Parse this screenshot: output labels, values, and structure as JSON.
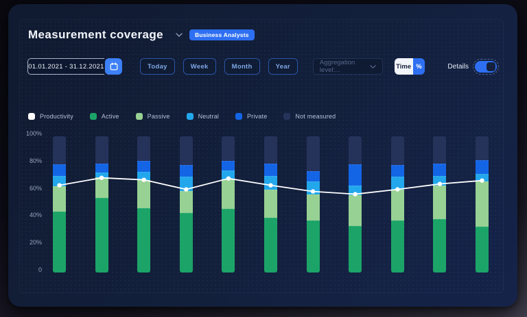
{
  "header": {
    "title": "Measurement coverage",
    "team_badge": "Business Analysts"
  },
  "icons": {
    "title_chevron": "chevron-down",
    "calendar": "calendar",
    "dropdown_chevron": "chevron-down"
  },
  "toolbar": {
    "date_range": "01.01.2021 - 31.12.2021",
    "range_buttons": [
      "Today",
      "Week",
      "Month",
      "Year"
    ],
    "aggregation_placeholder": "Aggregation level:...",
    "unit_toggle": {
      "options": [
        "Time",
        "%"
      ],
      "selected": "%"
    },
    "details_label": "Details",
    "details_on": true
  },
  "legend": [
    {
      "label": "Productivity",
      "color": "#ffffff"
    },
    {
      "label": "Active",
      "color": "#1ca468"
    },
    {
      "label": "Passive",
      "color": "#97d193"
    },
    {
      "label": "Neutral",
      "color": "#23a7ec"
    },
    {
      "label": "Private",
      "color": "#1465e6"
    },
    {
      "label": "Not measured",
      "color": "#25325a"
    }
  ],
  "chart_data": {
    "type": "bar",
    "stacked": true,
    "unit": "%",
    "ylim": [
      0,
      100
    ],
    "y_ticks": [
      "100%",
      "80%",
      "60%",
      "40%",
      "20%",
      "0"
    ],
    "y_tick_values": [
      100,
      80,
      60,
      40,
      20,
      0
    ],
    "grid": false,
    "legend_position": "top",
    "stack_order": [
      "active",
      "passive",
      "neutral",
      "private",
      "not_measured"
    ],
    "series_colors": {
      "active": "#1ca468",
      "passive": "#97d193",
      "neutral": "#23a7ec",
      "private": "#1465e6",
      "not_measured": "#25325a"
    },
    "bars": [
      {
        "active": 44.5,
        "passive": 19.0,
        "neutral": 7.5,
        "private": 8.5,
        "not_measured": 20.5
      },
      {
        "active": 55.0,
        "passive": 15.0,
        "neutral": 3.5,
        "private": 6.5,
        "not_measured": 20.0
      },
      {
        "active": 47.0,
        "passive": 21.0,
        "neutral": 6.0,
        "private": 8.0,
        "not_measured": 18.0
      },
      {
        "active": 43.5,
        "passive": 16.5,
        "neutral": 10.5,
        "private": 8.5,
        "not_measured": 21.0
      },
      {
        "active": 46.5,
        "passive": 22.0,
        "neutral": 6.5,
        "private": 7.0,
        "not_measured": 18.0
      },
      {
        "active": 40.0,
        "passive": 21.0,
        "neutral": 10.0,
        "private": 9.0,
        "not_measured": 20.0
      },
      {
        "active": 38.0,
        "passive": 19.5,
        "neutral": 9.5,
        "private": 7.5,
        "not_measured": 25.5
      },
      {
        "active": 34.0,
        "passive": 23.0,
        "neutral": 7.0,
        "private": 15.5,
        "not_measured": 20.5
      },
      {
        "active": 38.0,
        "passive": 23.0,
        "neutral": 9.5,
        "private": 8.5,
        "not_measured": 21.0
      },
      {
        "active": 39.0,
        "passive": 25.0,
        "neutral": 7.0,
        "private": 9.0,
        "not_measured": 20.0
      },
      {
        "active": 33.5,
        "passive": 33.5,
        "neutral": 5.5,
        "private": 10.0,
        "not_measured": 17.5
      }
    ],
    "line": {
      "name": "Productivity",
      "color": "#ffffff",
      "values": [
        64,
        69.5,
        68,
        61,
        69,
        64,
        59.5,
        57.5,
        61,
        65,
        67.5
      ]
    }
  }
}
